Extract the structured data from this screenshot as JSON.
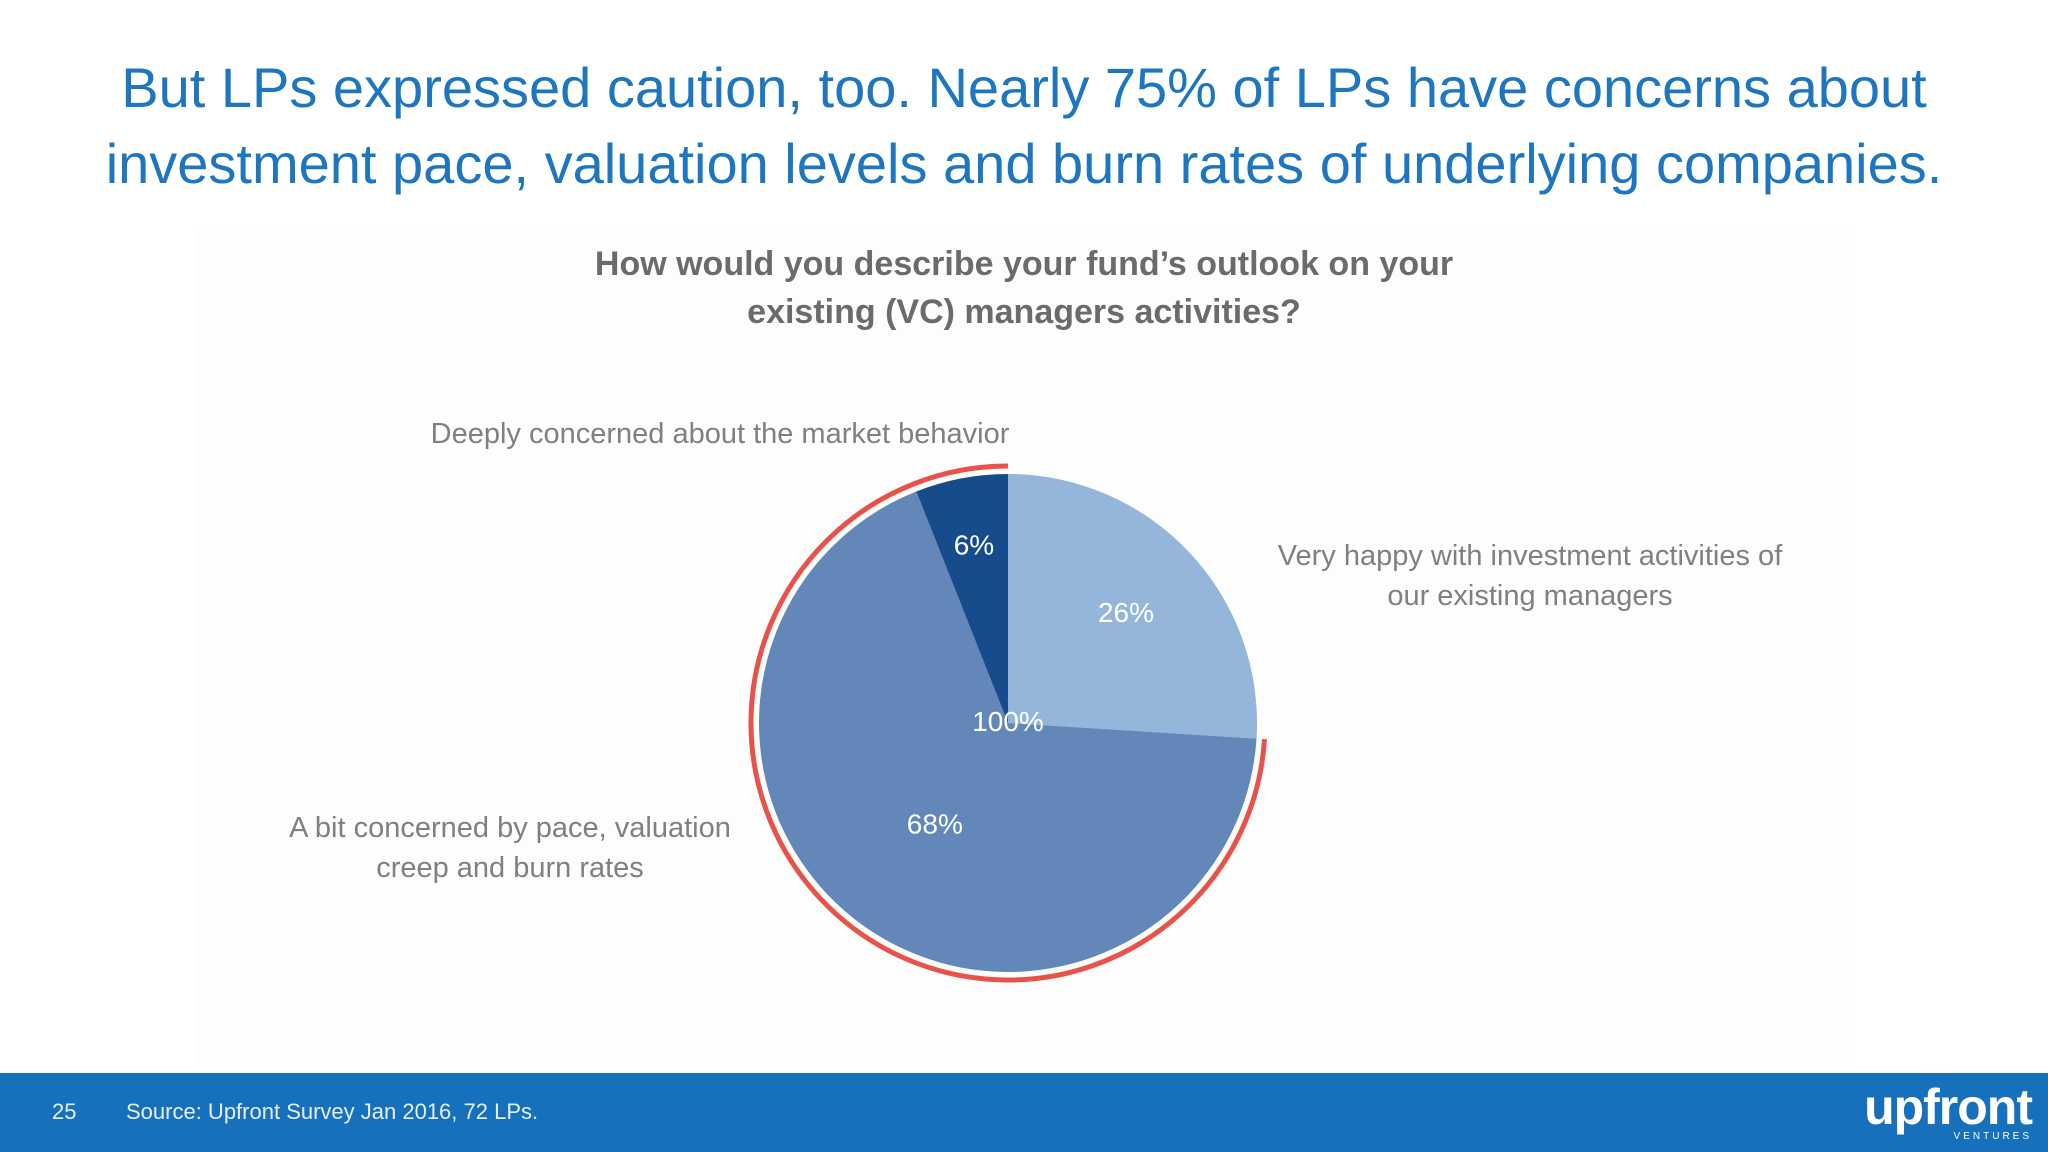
{
  "title": {
    "line1": "But LPs expressed caution, too. Nearly 75% of LPs have concerns about",
    "line2": "investment pace, valuation levels and burn rates of underlying companies."
  },
  "chart_data": {
    "type": "pie",
    "title_line1": "How would you describe your fund’s outlook on your",
    "title_line2": "existing (VC) managers activities?",
    "center_label": "100%",
    "slices": [
      {
        "label_line1": "Very happy with investment activities of",
        "label_line2": "our existing managers",
        "value": 26,
        "value_label": "26%",
        "color": "#93b6da"
      },
      {
        "label_line1": "A bit concerned by pace, valuation",
        "label_line2": "creep and burn rates",
        "value": 68,
        "value_label": "68%",
        "color": "#6287b8"
      },
      {
        "label_line1": "Deeply concerned about the market behavior",
        "label_line2": "",
        "value": 6,
        "value_label": "6%",
        "color": "#164c8c"
      }
    ],
    "highlight_color": "#e7534a"
  },
  "footer": {
    "page_number": "25",
    "source": "Source: Upfront Survey Jan 2016, 72 LPs.",
    "logo_text": "upfront",
    "logo_sub": "VENTURES"
  },
  "colors": {
    "title": "#1d76bf",
    "footer_bg": "#1770bb"
  }
}
